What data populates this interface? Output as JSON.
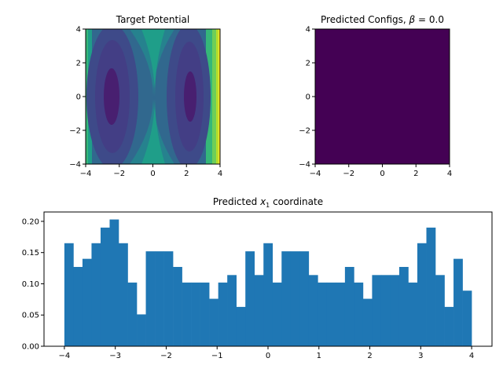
{
  "chart_data": [
    {
      "type": "heatmap",
      "title": "Target Potential",
      "xlim": [
        -4,
        4
      ],
      "ylim": [
        -4,
        4
      ],
      "xticks": [
        "−4",
        "−2",
        "0",
        "2",
        "4"
      ],
      "yticks": [
        "4",
        "2",
        "0",
        "−2",
        "−4"
      ],
      "colormap": "viridis",
      "description_levels": "double-well potential with minima near x = -2.5 and x = 2.3"
    },
    {
      "type": "heatmap",
      "title_prefix": "Predicted Configs, ",
      "title_symbol": "β",
      "title_suffix": " = 0.0",
      "xlim": [
        -4,
        4
      ],
      "ylim": [
        -4,
        4
      ],
      "xticks": [
        "−4",
        "−2",
        "0",
        "2",
        "4"
      ],
      "yticks": [
        "4",
        "2",
        "0",
        "−2",
        "−4"
      ],
      "fill_color": "#440154"
    },
    {
      "type": "bar",
      "title_prefix": "Predicted ",
      "title_var": "x",
      "title_sub": "1",
      "title_suffix": " coordinate",
      "xlim": [
        -4.4,
        4.4
      ],
      "ylim": [
        0,
        0.215
      ],
      "bin_start": -4,
      "bin_end": 4,
      "values": [
        0.165,
        0.127,
        0.14,
        0.165,
        0.19,
        0.203,
        0.165,
        0.102,
        0.051,
        0.152,
        0.152,
        0.152,
        0.127,
        0.102,
        0.102,
        0.102,
        0.076,
        0.102,
        0.114,
        0.063,
        0.152,
        0.114,
        0.165,
        0.102,
        0.152,
        0.152,
        0.152,
        0.114,
        0.102,
        0.102,
        0.102,
        0.127,
        0.102,
        0.076,
        0.114,
        0.114,
        0.114,
        0.127,
        0.102,
        0.165,
        0.19,
        0.114,
        0.063,
        0.14,
        0.089
      ],
      "bar_color": "#1f77b4",
      "xticks": [
        "−4",
        "−3",
        "−2",
        "−1",
        "0",
        "1",
        "2",
        "3",
        "4"
      ],
      "yticks": [
        "0.00",
        "0.05",
        "0.10",
        "0.15",
        "0.20"
      ]
    }
  ]
}
